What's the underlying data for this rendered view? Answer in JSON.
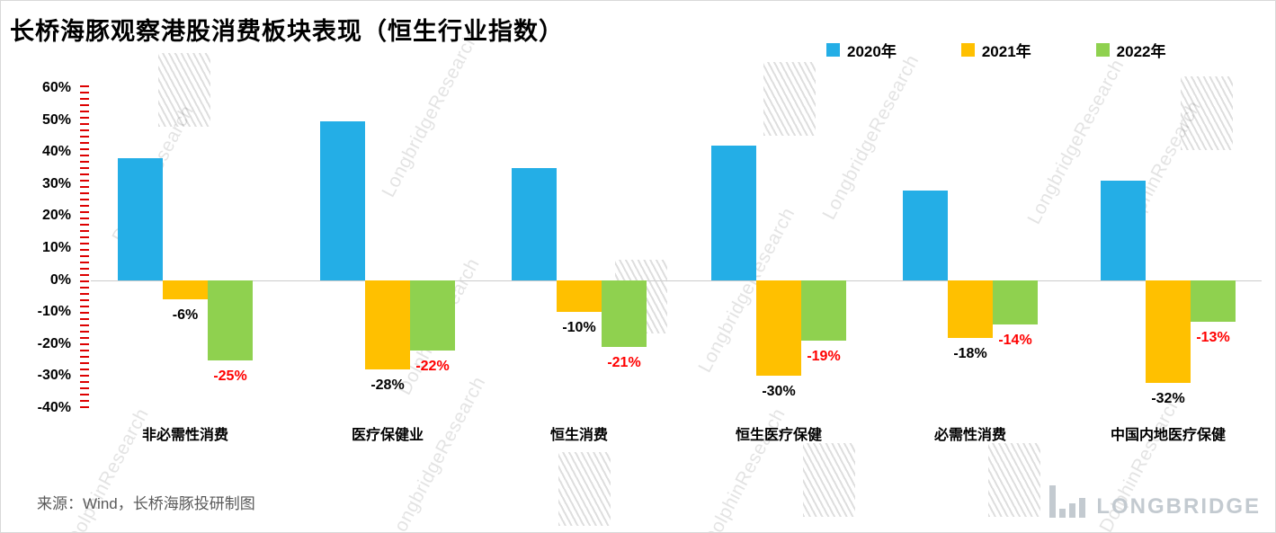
{
  "title": "长桥海豚观察港股消费板块表现（恒生行业指数）",
  "legend": [
    {
      "label": "2020年",
      "color": "#24AEE6"
    },
    {
      "label": "2021年",
      "color": "#FFC000"
    },
    {
      "label": "2022年",
      "color": "#8FD14F"
    }
  ],
  "source": "来源：Wind，长桥海豚投研制图",
  "watermarks": {
    "longbridge": "LongbridgeResearch",
    "dolphin": "DolphinResearch",
    "logo_text": "LONGBRIDGE"
  },
  "chart_data": {
    "type": "bar",
    "categories": [
      "非必需性消费",
      "医疗保健业",
      "恒生消费",
      "恒生医疗保健",
      "必需性消费",
      "中国内地医疗保健"
    ],
    "series": [
      {
        "name": "2020年",
        "color": "#24AEE6",
        "values": [
          38,
          49.5,
          35,
          42,
          28,
          31
        ],
        "labels": [
          null,
          null,
          null,
          null,
          null,
          null
        ],
        "label_color": "#000000"
      },
      {
        "name": "2021年",
        "color": "#FFC000",
        "values": [
          -6,
          -28,
          -10,
          -30,
          -18,
          -32
        ],
        "labels": [
          "-6%",
          "-28%",
          "-10%",
          "-30%",
          "-18%",
          "-32%"
        ],
        "label_color": "#000000"
      },
      {
        "name": "2022年",
        "color": "#8FD14F",
        "values": [
          -25,
          -22,
          -21,
          -19,
          -14,
          -13
        ],
        "labels": [
          "-25%",
          "-22%",
          "-21%",
          "-19%",
          "-14%",
          "-13%"
        ],
        "label_color": "#FF0000"
      }
    ],
    "ylim": [
      -40,
      60
    ],
    "ytick_step": 10,
    "yticks": [
      "60%",
      "50%",
      "40%",
      "30%",
      "20%",
      "10%",
      "0%",
      "-10%",
      "-20%",
      "-30%",
      "-40%"
    ],
    "grid": "zero-line-only",
    "legend_position": "top-right"
  }
}
